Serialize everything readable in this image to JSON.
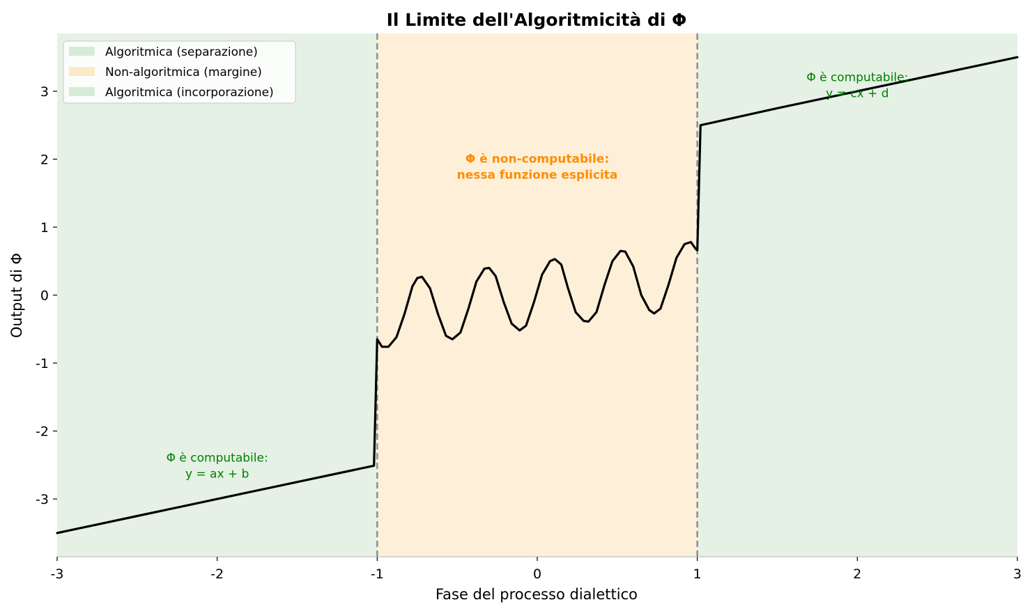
{
  "chart_data": {
    "type": "line",
    "title": "Il Limite dell'Algoritmicità di Φ",
    "xlabel": "Fase del processo dialettico",
    "ylabel": "Output di Φ",
    "xlim": [
      -3,
      3
    ],
    "ylim": [
      -3.85,
      3.85
    ],
    "x_ticks": [
      -3,
      -2,
      -1,
      0,
      1,
      2,
      3
    ],
    "x_tick_labels": [
      "-3",
      "-2",
      "-1",
      "0",
      "1",
      "2",
      "3"
    ],
    "y_ticks": [
      -3,
      -2,
      -1,
      0,
      1,
      2,
      3
    ],
    "y_tick_labels": [
      "-3",
      "-2",
      "-1",
      "0",
      "1",
      "2",
      "3"
    ],
    "grid": false,
    "legend_position": "top-left",
    "regions": [
      {
        "name": "Algoritmica (separazione)",
        "x_range": [
          -3,
          -1
        ],
        "color": "#cfe6cf"
      },
      {
        "name": "Non-algoritmica (margine)",
        "x_range": [
          -1,
          1
        ],
        "color": "#fde4b8"
      },
      {
        "name": "Algoritmica (incorporazione)",
        "x_range": [
          1,
          3
        ],
        "color": "#cfe6cf"
      }
    ],
    "boundaries": [
      -1,
      1
    ],
    "series": [
      {
        "color": "#000000",
        "points": [
          [
            -3.0,
            -3.5
          ],
          [
            -2.5,
            -3.25
          ],
          [
            -2.0,
            -3.0
          ],
          [
            -1.5,
            -2.75
          ],
          [
            -1.02,
            -2.51
          ],
          [
            -1.0,
            -0.65
          ],
          [
            -0.97,
            -0.76
          ],
          [
            -0.93,
            -0.76
          ],
          [
            -0.88,
            -0.62
          ],
          [
            -0.83,
            -0.28
          ],
          [
            -0.78,
            0.13
          ],
          [
            -0.75,
            0.25
          ],
          [
            -0.72,
            0.27
          ],
          [
            -0.67,
            0.1
          ],
          [
            -0.62,
            -0.28
          ],
          [
            -0.57,
            -0.6
          ],
          [
            -0.53,
            -0.65
          ],
          [
            -0.48,
            -0.55
          ],
          [
            -0.43,
            -0.2
          ],
          [
            -0.38,
            0.2
          ],
          [
            -0.33,
            0.39
          ],
          [
            -0.3,
            0.4
          ],
          [
            -0.26,
            0.28
          ],
          [
            -0.21,
            -0.1
          ],
          [
            -0.16,
            -0.42
          ],
          [
            -0.11,
            -0.52
          ],
          [
            -0.07,
            -0.45
          ],
          [
            -0.02,
            -0.1
          ],
          [
            0.03,
            0.3
          ],
          [
            0.08,
            0.5
          ],
          [
            0.11,
            0.53
          ],
          [
            0.15,
            0.45
          ],
          [
            0.19,
            0.12
          ],
          [
            0.24,
            -0.25
          ],
          [
            0.29,
            -0.38
          ],
          [
            0.32,
            -0.39
          ],
          [
            0.37,
            -0.25
          ],
          [
            0.42,
            0.15
          ],
          [
            0.47,
            0.5
          ],
          [
            0.52,
            0.65
          ],
          [
            0.55,
            0.64
          ],
          [
            0.6,
            0.42
          ],
          [
            0.65,
            0.0
          ],
          [
            0.7,
            -0.22
          ],
          [
            0.73,
            -0.27
          ],
          [
            0.77,
            -0.2
          ],
          [
            0.82,
            0.15
          ],
          [
            0.87,
            0.55
          ],
          [
            0.92,
            0.75
          ],
          [
            0.96,
            0.78
          ],
          [
            0.99,
            0.68
          ],
          [
            1.0,
            0.66
          ],
          [
            1.02,
            2.5
          ],
          [
            1.5,
            2.75
          ],
          [
            2.0,
            3.0
          ],
          [
            2.5,
            3.25
          ],
          [
            3.0,
            3.5
          ]
        ]
      }
    ],
    "annotations": [
      {
        "lines": [
          "Φ è computabile:",
          "y = ax + b"
        ],
        "x": -2.0,
        "y": -2.45,
        "color": "#008000",
        "bold": false
      },
      {
        "lines": [
          "Φ è non-computabile:",
          "nessa funzione esplicita"
        ],
        "x": 0.0,
        "y": 1.95,
        "color": "#ff8c00",
        "bold": true
      },
      {
        "lines": [
          "Φ è computabile:",
          "y = cx + d"
        ],
        "x": 2.0,
        "y": 3.15,
        "color": "#008000",
        "bold": false
      }
    ]
  }
}
